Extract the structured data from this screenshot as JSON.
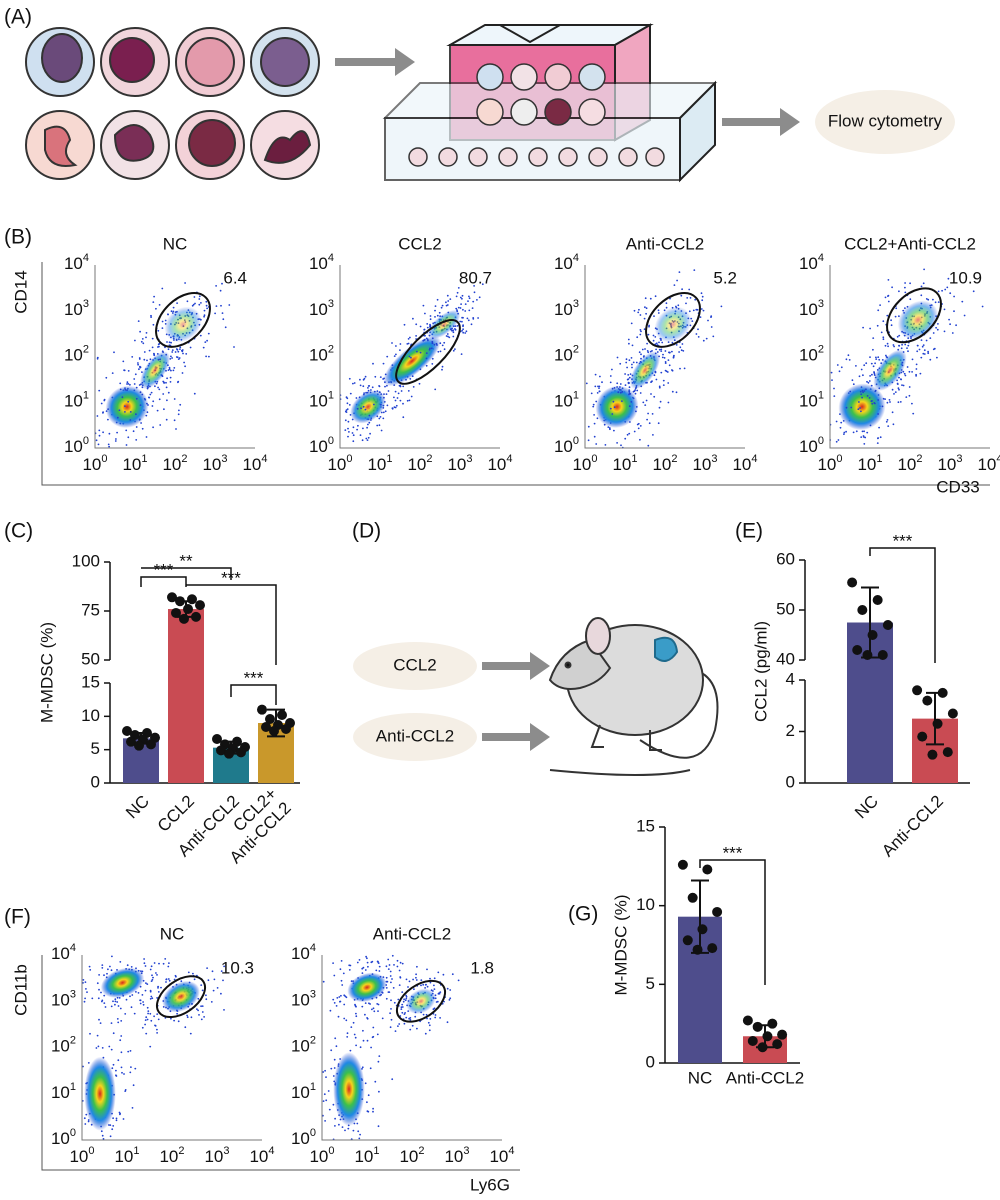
{
  "panel_a": {
    "label": "(A)",
    "output": "Flow cytometry"
  },
  "panel_b": {
    "label": "(B)",
    "y_label": "CD14",
    "x_label": "CD33",
    "tick_base": "10",
    "tick_exponents": [
      "0",
      "1",
      "2",
      "3",
      "4"
    ],
    "plots": [
      {
        "title": "NC",
        "gate": "6.4"
      },
      {
        "title": "CCL2",
        "gate": "80.7"
      },
      {
        "title": "Anti-CCL2",
        "gate": "5.2"
      },
      {
        "title": "CCL2+Anti-CCL2",
        "gate": "10.9"
      }
    ]
  },
  "panel_d": {
    "label": "(D)",
    "treatments": [
      "CCL2",
      "Anti-CCL2"
    ]
  },
  "panel_f": {
    "label": "(F)",
    "y_label": "CD11b",
    "x_label": "Ly6G",
    "tick_base": "10",
    "tick_exponents": [
      "0",
      "1",
      "2",
      "3",
      "4"
    ],
    "plots": [
      {
        "title": "NC",
        "gate": "10.3"
      },
      {
        "title": "Anti-CCL2",
        "gate": "1.8"
      }
    ]
  },
  "chart_data": [
    {
      "panel": "(C)",
      "type": "bar",
      "y_label": "M-MDSC (%)",
      "categories": [
        "NC",
        "CCL2",
        "Anti-CCL2",
        "CCL2+\nAnti-CCL2"
      ],
      "values": [
        6.7,
        76,
        5.3,
        9
      ],
      "errors": [
        0.8,
        4,
        0.9,
        2
      ],
      "points": [
        [
          7.8,
          7.5,
          7.2,
          6.8,
          6.5,
          6.2,
          5.8,
          5.6
        ],
        [
          82,
          81,
          80,
          78,
          76,
          74,
          72,
          71
        ],
        [
          6.6,
          6.2,
          5.8,
          5.4,
          5.2,
          4.9,
          4.6,
          4.4
        ],
        [
          11,
          10.2,
          9.6,
          9,
          8.7,
          8.4,
          8.1,
          7.8
        ]
      ],
      "colors": [
        "#4e4d8c",
        "#c94b53",
        "#1f7a8c",
        "#c9982b"
      ],
      "ylim": [
        0,
        100
      ],
      "ybreak": [
        15,
        50
      ],
      "yticks": [
        0,
        5,
        10,
        15,
        50,
        75,
        100
      ],
      "comparisons": [
        {
          "pair": [
            0,
            1
          ],
          "label": "***"
        },
        {
          "pair": [
            0,
            2
          ],
          "label": "**"
        },
        {
          "pair": [
            1,
            3
          ],
          "label": "***"
        },
        {
          "pair": [
            2,
            3
          ],
          "label": "***"
        }
      ]
    },
    {
      "panel": "(E)",
      "type": "bar",
      "y_label": "CCL2 (pg/ml)",
      "categories": [
        "NC",
        "Anti-CCL2"
      ],
      "values": [
        47.5,
        2.5
      ],
      "errors": [
        7,
        1
      ],
      "points": [
        [
          55.5,
          52,
          50,
          47,
          45,
          42,
          41,
          41
        ],
        [
          3.6,
          3.5,
          3.2,
          2.7,
          2.3,
          1.8,
          1.2,
          1.1
        ]
      ],
      "colors": [
        "#4e4d8c",
        "#c94b53"
      ],
      "ylim": [
        0,
        60
      ],
      "ybreak": [
        4,
        40
      ],
      "yticks": [
        0,
        2,
        4,
        40,
        50,
        60
      ],
      "comparisons": [
        {
          "pair": [
            0,
            1
          ],
          "label": "***"
        }
      ]
    },
    {
      "panel": "(G)",
      "type": "bar",
      "y_label": "M-MDSC (%)",
      "categories": [
        "NC",
        "Anti-CCL2"
      ],
      "values": [
        9.3,
        1.7
      ],
      "errors": [
        2.3,
        0.7
      ],
      "points": [
        [
          12.6,
          12.3,
          10.5,
          9.6,
          8.5,
          7.8,
          7.3,
          7.2
        ],
        [
          2.7,
          2.5,
          2.3,
          1.8,
          1.7,
          1.4,
          1.2,
          1.0
        ]
      ],
      "colors": [
        "#4e4d8c",
        "#c94b53"
      ],
      "ylim": [
        0,
        15
      ],
      "yticks": [
        0,
        5,
        10,
        15
      ],
      "comparisons": [
        {
          "pair": [
            0,
            1
          ],
          "label": "***"
        }
      ]
    }
  ]
}
